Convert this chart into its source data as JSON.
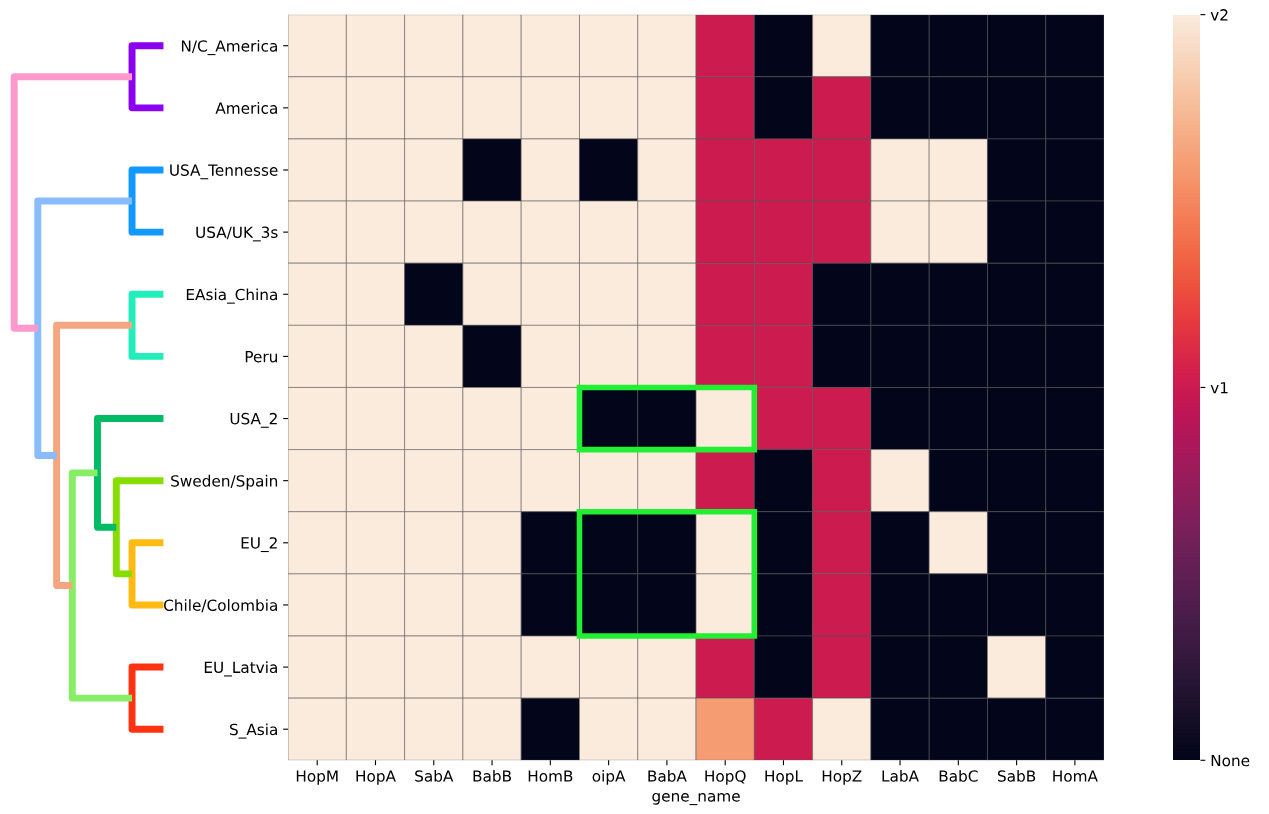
{
  "chart_data": {
    "type": "heatmap",
    "xlabel": "gene_name",
    "categories": [
      "HopM",
      "HopA",
      "SabA",
      "BabB",
      "HomB",
      "oipA",
      "BabA",
      "HopQ",
      "HopL",
      "HopZ",
      "LabA",
      "BabC",
      "SabB",
      "HomA"
    ],
    "y_categories": [
      "N/C_America",
      "America",
      "USA_Tennesse",
      "USA/UK_3s",
      "EAsia_China",
      "Peru",
      "USA_2",
      "Sweden/Spain",
      "EU_2",
      "Chile/Colombia",
      "EU_Latvia",
      "S_Asia"
    ],
    "cells": [
      [
        2,
        2,
        2,
        2,
        2,
        2,
        2,
        1,
        0,
        2,
        0,
        0,
        0,
        0
      ],
      [
        2,
        2,
        2,
        2,
        2,
        2,
        2,
        1,
        0,
        1,
        0,
        0,
        0,
        0
      ],
      [
        2,
        2,
        2,
        0,
        2,
        0,
        2,
        1,
        1,
        1,
        2,
        2,
        0,
        0
      ],
      [
        2,
        2,
        2,
        2,
        2,
        2,
        2,
        1,
        1,
        1,
        2,
        2,
        0,
        0
      ],
      [
        2,
        2,
        0,
        2,
        2,
        2,
        2,
        1,
        1,
        0,
        0,
        0,
        0,
        0
      ],
      [
        2,
        2,
        2,
        0,
        2,
        2,
        2,
        1,
        1,
        0,
        0,
        0,
        0,
        0
      ],
      [
        2,
        2,
        2,
        2,
        2,
        0,
        0,
        2,
        1,
        1,
        0,
        0,
        0,
        0
      ],
      [
        2,
        2,
        2,
        2,
        2,
        2,
        2,
        1,
        0,
        1,
        2,
        0,
        0,
        0
      ],
      [
        2,
        2,
        2,
        2,
        0,
        0,
        0,
        2,
        0,
        1,
        0,
        2,
        0,
        0
      ],
      [
        2,
        2,
        2,
        2,
        0,
        0,
        0,
        2,
        0,
        1,
        0,
        0,
        0,
        0
      ],
      [
        2,
        2,
        2,
        2,
        2,
        2,
        2,
        1,
        0,
        1,
        0,
        0,
        2,
        0
      ],
      [
        2,
        2,
        2,
        2,
        0,
        2,
        2,
        1.6,
        1,
        2,
        0,
        0,
        0,
        0
      ]
    ],
    "clim": [
      0,
      2
    ],
    "cticks": [
      {
        "value": 0,
        "label": "None"
      },
      {
        "value": 1,
        "label": "v1"
      },
      {
        "value": 2,
        "label": "v2"
      }
    ]
  }
}
